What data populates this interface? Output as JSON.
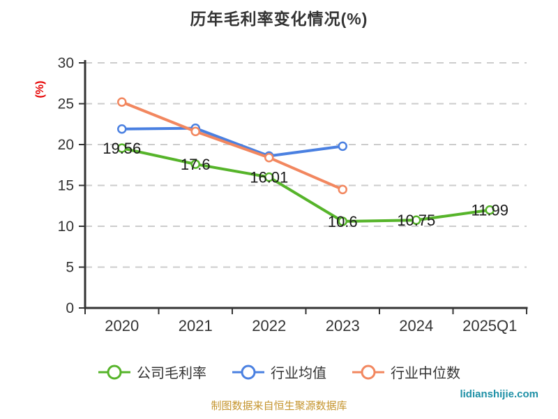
{
  "title": "历年毛利率变化情况(%)",
  "footer_note": "制图数据来自恒生聚源数据库",
  "watermark": "lidianshijie.com",
  "legend": {
    "items": [
      {
        "label": "公司毛利率",
        "color": "#56b42a"
      },
      {
        "label": "行业均值",
        "color": "#4a80e1"
      },
      {
        "label": "行业中位数",
        "color": "#f2875f"
      }
    ]
  },
  "chart_data": {
    "type": "line",
    "title": "历年毛利率变化情况(%)",
    "categories": [
      "2020",
      "2021",
      "2022",
      "2023",
      "2024",
      "2025Q1"
    ],
    "series": [
      {
        "name": "公司毛利率",
        "color": "#56b42a",
        "values": [
          19.56,
          17.6,
          16.01,
          10.6,
          10.75,
          11.99
        ],
        "labels": [
          "19.56",
          "17.6",
          "16.01",
          "10.6",
          "10.75",
          "11.99"
        ],
        "show_labels": true
      },
      {
        "name": "行业均值",
        "color": "#4a80e1",
        "values": [
          21.9,
          22.0,
          18.6,
          19.8,
          null,
          null
        ],
        "show_labels": false
      },
      {
        "name": "行业中位数",
        "color": "#f2875f",
        "values": [
          25.2,
          21.6,
          18.4,
          14.5,
          null,
          null
        ],
        "show_labels": false
      }
    ],
    "xlabel": "",
    "ylabel": "(%)",
    "ylim": [
      0,
      30
    ],
    "yticks": [
      0,
      5,
      10,
      15,
      20,
      25,
      30
    ],
    "grid": "horizontal-dashed",
    "legend_position": "bottom"
  },
  "style": {
    "axis_color": "#333333",
    "grid_color": "#cccccc",
    "tick_label_color": "#333333",
    "data_label_color": "#1a1a1a",
    "ylabel_color": "#e60000",
    "title_color": "#333333",
    "footer_color": "#c5952f",
    "watermark_color": "#1e90a6"
  }
}
